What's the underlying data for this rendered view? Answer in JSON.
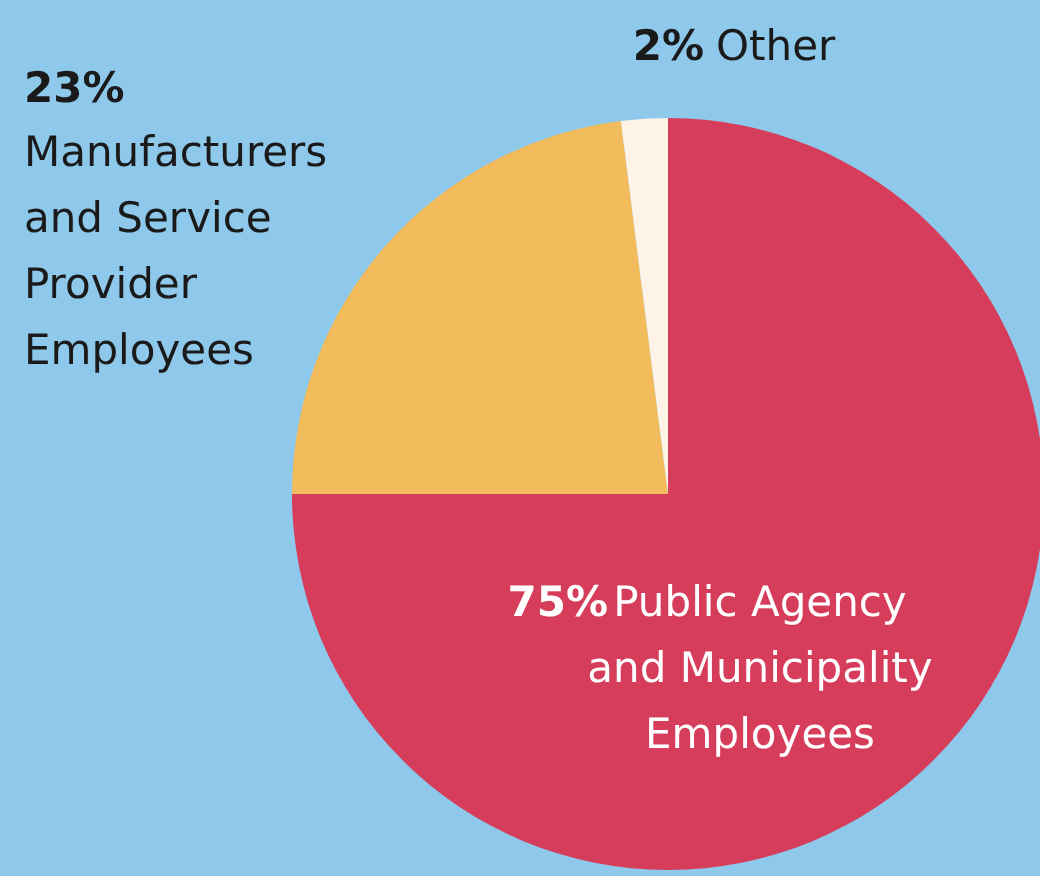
{
  "chart_data": {
    "type": "pie",
    "categories": [
      "Public Agency and Municipality Employees",
      "Manufacturers and Service Provider Employees",
      "Other"
    ],
    "values": [
      75,
      23,
      2
    ],
    "colors": [
      "#d63d5a",
      "#f2bb5c",
      "#fdf3e6"
    ],
    "value_labels": [
      "75%",
      "23%",
      "2%"
    ]
  }
}
